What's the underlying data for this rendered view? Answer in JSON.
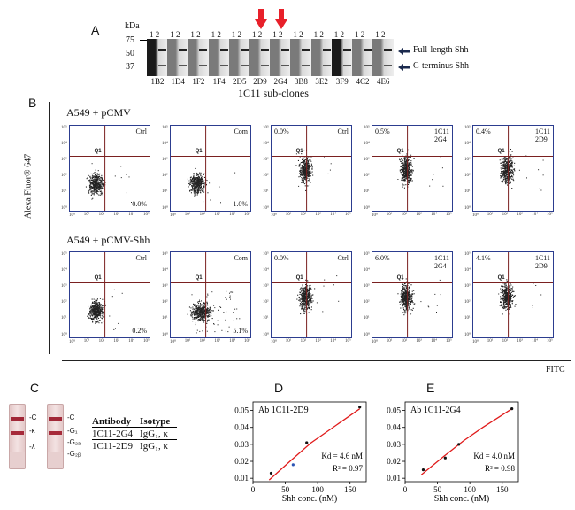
{
  "panel_a": {
    "letter": "A",
    "kda_label": "kDa",
    "markers": [
      "75",
      "50",
      "37"
    ],
    "lane_numbers": "1 2",
    "clones": [
      "1B2",
      "1D4",
      "1F2",
      "1F4",
      "2D5",
      "2D9",
      "2G4",
      "3B8",
      "3E2",
      "3F9",
      "4C2",
      "4E6"
    ],
    "full_length_label": "Full-length Shh",
    "c_terminus_label": "C-terminus Shh",
    "caption": "1C11 sub-clones"
  },
  "panel_b": {
    "letter": "B",
    "y_axis_label": "Alexa Fluor® 647",
    "x_axis_label": "FITC",
    "q1_label": "Q1",
    "row1_title": "A549 + pCMV",
    "row2_title": "A549 + pCMV-Shh",
    "y_ticks": [
      "10⁵",
      "10⁴",
      "10³",
      "10²",
      "10¹",
      "10⁰"
    ],
    "x_ticks": [
      "10⁰",
      "10¹",
      "10²",
      "10³",
      "10⁴",
      "10⁵"
    ],
    "row1": [
      {
        "tag": "Ctrl",
        "pct": "0.0%",
        "pct_pos": "bottom-right"
      },
      {
        "tag": "Com",
        "pct": "1.0%",
        "pct_pos": "bottom-right"
      },
      {
        "tag": "Ctrl",
        "pct": "0.0%",
        "pct_pos": "top-left"
      },
      {
        "tag": "1C11\n2G4",
        "pct": "0.5%",
        "pct_pos": "top-left"
      },
      {
        "tag": "1C11\n2D9",
        "pct": "0.4%",
        "pct_pos": "top-left"
      }
    ],
    "row2": [
      {
        "tag": "Ctrl",
        "pct": "0.2%",
        "pct_pos": "bottom-right"
      },
      {
        "tag": "Com",
        "pct": "5.1%",
        "pct_pos": "bottom-right"
      },
      {
        "tag": "Ctrl",
        "pct": "0.0%",
        "pct_pos": "top-left"
      },
      {
        "tag": "1C11\n2G4",
        "pct": "6.0%",
        "pct_pos": "top-left"
      },
      {
        "tag": "1C11\n2D9",
        "pct": "4.1%",
        "pct_pos": "top-left"
      }
    ]
  },
  "panel_c": {
    "letter": "C",
    "strip1_labels": [
      "-C",
      "-κ",
      "-λ"
    ],
    "strip2_labels": [
      "-C",
      "-G₁",
      "-G₂ₐ",
      "-G₂ᵦ"
    ],
    "table_headers": [
      "Antibody",
      "Isotype"
    ],
    "table_rows": [
      [
        "1C11-2G4",
        "IgG₁, κ"
      ],
      [
        "1C11-2D9",
        "IgG₁, κ"
      ]
    ]
  },
  "panel_d": {
    "letter": "D",
    "title": "Ab 1C11-2D9",
    "kd": "Kd = 4.6 nM",
    "r2": "R² = 0.97"
  },
  "panel_e": {
    "letter": "E",
    "title": "Ab 1C11-2G4",
    "kd": "Kd = 4.0 nM",
    "r2": "R² = 0.98"
  },
  "chart_data": [
    {
      "type": "scatter",
      "title": "Ab 1C11-2D9",
      "xlabel": "Shh conc. (nM)",
      "ylabel": "",
      "xlim": [
        0,
        175
      ],
      "ylim": [
        0.008,
        0.055
      ],
      "x_ticks": [
        0,
        50,
        100,
        150
      ],
      "y_ticks": [
        0.01,
        0.02,
        0.03,
        0.04,
        0.05
      ],
      "series": [
        {
          "name": "data",
          "x": [
            28,
            62,
            83,
            165
          ],
          "y": [
            0.013,
            0.018,
            0.031,
            0.052
          ]
        },
        {
          "name": "fit",
          "x": [
            25,
            60,
            90,
            120,
            165
          ],
          "y": [
            0.009,
            0.021,
            0.031,
            0.039,
            0.051
          ]
        }
      ]
    },
    {
      "type": "scatter",
      "title": "Ab 1C11-2G4",
      "xlabel": "Shh conc. (nM)",
      "ylabel": "",
      "xlim": [
        0,
        175
      ],
      "ylim": [
        0.008,
        0.055
      ],
      "x_ticks": [
        0,
        50,
        100,
        150
      ],
      "y_ticks": [
        0.01,
        0.02,
        0.03,
        0.04,
        0.05
      ],
      "series": [
        {
          "name": "data",
          "x": [
            28,
            62,
            83,
            165
          ],
          "y": [
            0.015,
            0.022,
            0.03,
            0.051
          ]
        },
        {
          "name": "fit",
          "x": [
            25,
            60,
            90,
            120,
            165
          ],
          "y": [
            0.012,
            0.023,
            0.032,
            0.04,
            0.051
          ]
        }
      ]
    }
  ]
}
